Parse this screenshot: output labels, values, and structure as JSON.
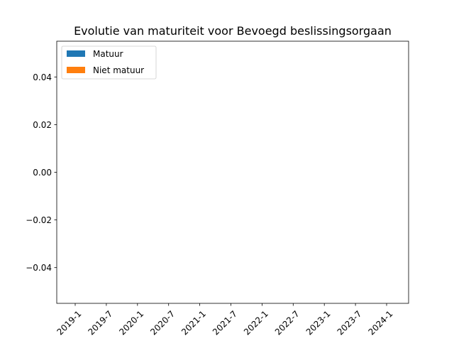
{
  "chart_data": {
    "type": "bar",
    "title": "Evolutie van maturiteit voor Bevoegd beslissingsorgaan",
    "xlabel": "",
    "ylabel": "",
    "categories": [
      "2019-1",
      "2019-7",
      "2020-1",
      "2020-7",
      "2021-1",
      "2021-7",
      "2022-1",
      "2022-7",
      "2023-1",
      "2023-7",
      "2024-1"
    ],
    "series": [
      {
        "name": "Matuur",
        "values": [
          0,
          0,
          0,
          0,
          0,
          0,
          0,
          0,
          0,
          0,
          0
        ],
        "color": "#1f77b4"
      },
      {
        "name": "Niet matuur",
        "values": [
          0,
          0,
          0,
          0,
          0,
          0,
          0,
          0,
          0,
          0,
          0
        ],
        "color": "#ff7f0e"
      }
    ],
    "ylim": [
      -0.055,
      0.055
    ],
    "yticks": [
      0.04,
      0.02,
      0.0,
      -0.02,
      -0.04
    ],
    "ytick_labels": [
      "0.04",
      "0.02",
      "0.00",
      "−0.02",
      "−0.04"
    ],
    "grid": false,
    "legend_position": "top-left"
  }
}
